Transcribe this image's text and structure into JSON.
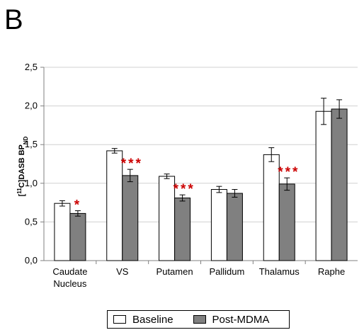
{
  "panel_label": "B",
  "chart_data": {
    "type": "bar",
    "title": "",
    "xlabel": "",
    "ylabel": "[11C]DASB BPND",
    "ylabel_parts": {
      "pre": "[",
      "sup": "11",
      "mid": "C]DASB BP",
      "sub": "ND"
    },
    "ylim": [
      0,
      2.5
    ],
    "yticks": [
      "0,0",
      "0,5",
      "1,0",
      "1,5",
      "2,0",
      "2,5"
    ],
    "grid": true,
    "legend_position": "bottom",
    "categories": [
      [
        "Caudate",
        "Nucleus"
      ],
      [
        "VS"
      ],
      [
        "Putamen"
      ],
      [
        "Pallidum"
      ],
      [
        "Thalamus"
      ],
      [
        "Raphe"
      ]
    ],
    "series": [
      {
        "name": "Baseline",
        "color": "#ffffff",
        "values": [
          0.74,
          1.42,
          1.09,
          0.92,
          1.37,
          1.93
        ],
        "errors": [
          0.035,
          0.03,
          0.03,
          0.04,
          0.09,
          0.17
        ]
      },
      {
        "name": "Post-MDMA",
        "color": "#808080",
        "values": [
          0.61,
          1.1,
          0.81,
          0.87,
          0.99,
          1.96
        ],
        "errors": [
          0.035,
          0.08,
          0.04,
          0.05,
          0.08,
          0.12
        ]
      }
    ],
    "significance": [
      "*",
      "***",
      "***",
      "",
      "***",
      ""
    ],
    "significance_color": "#cc0000"
  }
}
